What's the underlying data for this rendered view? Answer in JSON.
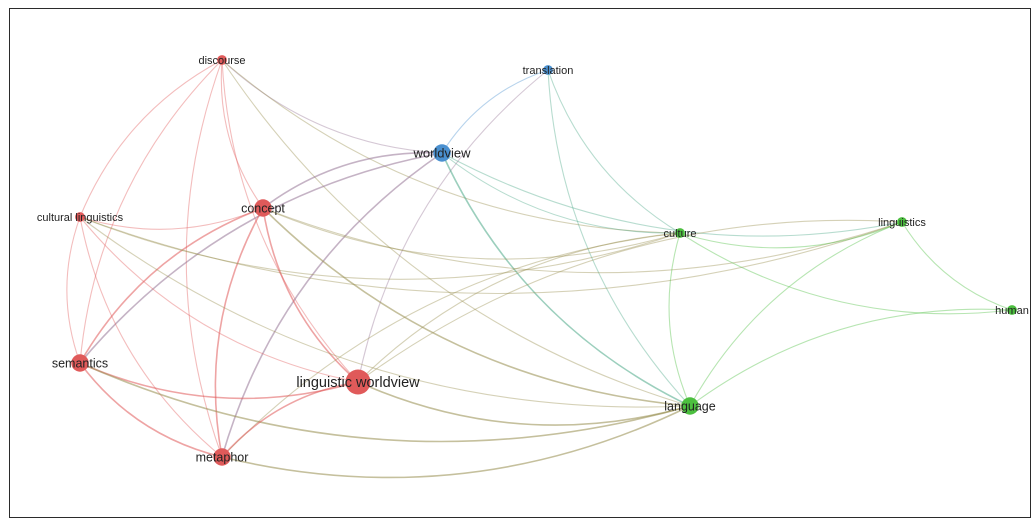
{
  "clusters": [
    {
      "name": "",
      "color": "#e05a5a"
    },
    {
      "name": "",
      "color": "#4a90d0"
    },
    {
      "name": "",
      "color": "#4cbf3f"
    }
  ],
  "nodes": [
    {
      "id": "discourse",
      "label": "discourse",
      "cluster": 0,
      "weight": 1
    },
    {
      "id": "translation",
      "label": "translation",
      "cluster": 1,
      "weight": 1
    },
    {
      "id": "worldview",
      "label": "worldview",
      "cluster": 1,
      "weight": 3
    },
    {
      "id": "concept",
      "label": "concept",
      "cluster": 0,
      "weight": 3
    },
    {
      "id": "cultural-linguistics",
      "label": "cultural linguistics",
      "cluster": 0,
      "weight": 1
    },
    {
      "id": "culture",
      "label": "culture",
      "cluster": 2,
      "weight": 1
    },
    {
      "id": "linguistics",
      "label": "linguistics",
      "cluster": 2,
      "weight": 1
    },
    {
      "id": "human",
      "label": "human",
      "cluster": 2,
      "weight": 1
    },
    {
      "id": "semantics",
      "label": "semantics",
      "cluster": 0,
      "weight": 3
    },
    {
      "id": "linguistic-worldview",
      "label": "linguistic worldview",
      "cluster": 0,
      "weight": 5
    },
    {
      "id": "language",
      "label": "language",
      "cluster": 2,
      "weight": 3
    },
    {
      "id": "metaphor",
      "label": "metaphor",
      "cluster": 0,
      "weight": 3
    }
  ],
  "edges": [
    [
      "discourse",
      "concept"
    ],
    [
      "discourse",
      "linguistic-worldview"
    ],
    [
      "discourse",
      "metaphor"
    ],
    [
      "discourse",
      "cultural-linguistics"
    ],
    [
      "discourse",
      "worldview"
    ],
    [
      "discourse",
      "culture"
    ],
    [
      "discourse",
      "semantics"
    ],
    [
      "discourse",
      "language"
    ],
    [
      "translation",
      "worldview"
    ],
    [
      "translation",
      "culture"
    ],
    [
      "translation",
      "language"
    ],
    [
      "translation",
      "linguistic-worldview"
    ],
    [
      "worldview",
      "concept"
    ],
    [
      "worldview",
      "culture"
    ],
    [
      "worldview",
      "linguistics"
    ],
    [
      "worldview",
      "language"
    ],
    [
      "worldview",
      "semantics"
    ],
    [
      "worldview",
      "metaphor"
    ],
    [
      "concept",
      "linguistic-worldview"
    ],
    [
      "concept",
      "metaphor"
    ],
    [
      "concept",
      "culture"
    ],
    [
      "concept",
      "language"
    ],
    [
      "concept",
      "semantics"
    ],
    [
      "concept",
      "linguistics"
    ],
    [
      "cultural-linguistics",
      "semantics"
    ],
    [
      "cultural-linguistics",
      "metaphor"
    ],
    [
      "cultural-linguistics",
      "linguistic-worldview"
    ],
    [
      "cultural-linguistics",
      "concept"
    ],
    [
      "cultural-linguistics",
      "culture"
    ],
    [
      "cultural-linguistics",
      "language"
    ],
    [
      "cultural-linguistics",
      "linguistics"
    ],
    [
      "culture",
      "linguistics"
    ],
    [
      "culture",
      "language"
    ],
    [
      "culture",
      "human"
    ],
    [
      "culture",
      "linguistic-worldview"
    ],
    [
      "culture",
      "metaphor"
    ],
    [
      "linguistics",
      "human"
    ],
    [
      "linguistics",
      "language"
    ],
    [
      "linguistics",
      "linguistic-worldview"
    ],
    [
      "human",
      "language"
    ],
    [
      "semantics",
      "linguistic-worldview"
    ],
    [
      "semantics",
      "metaphor"
    ],
    [
      "semantics",
      "language"
    ],
    [
      "linguistic-worldview",
      "language"
    ],
    [
      "linguistic-worldview",
      "metaphor"
    ],
    [
      "metaphor",
      "language"
    ]
  ]
}
